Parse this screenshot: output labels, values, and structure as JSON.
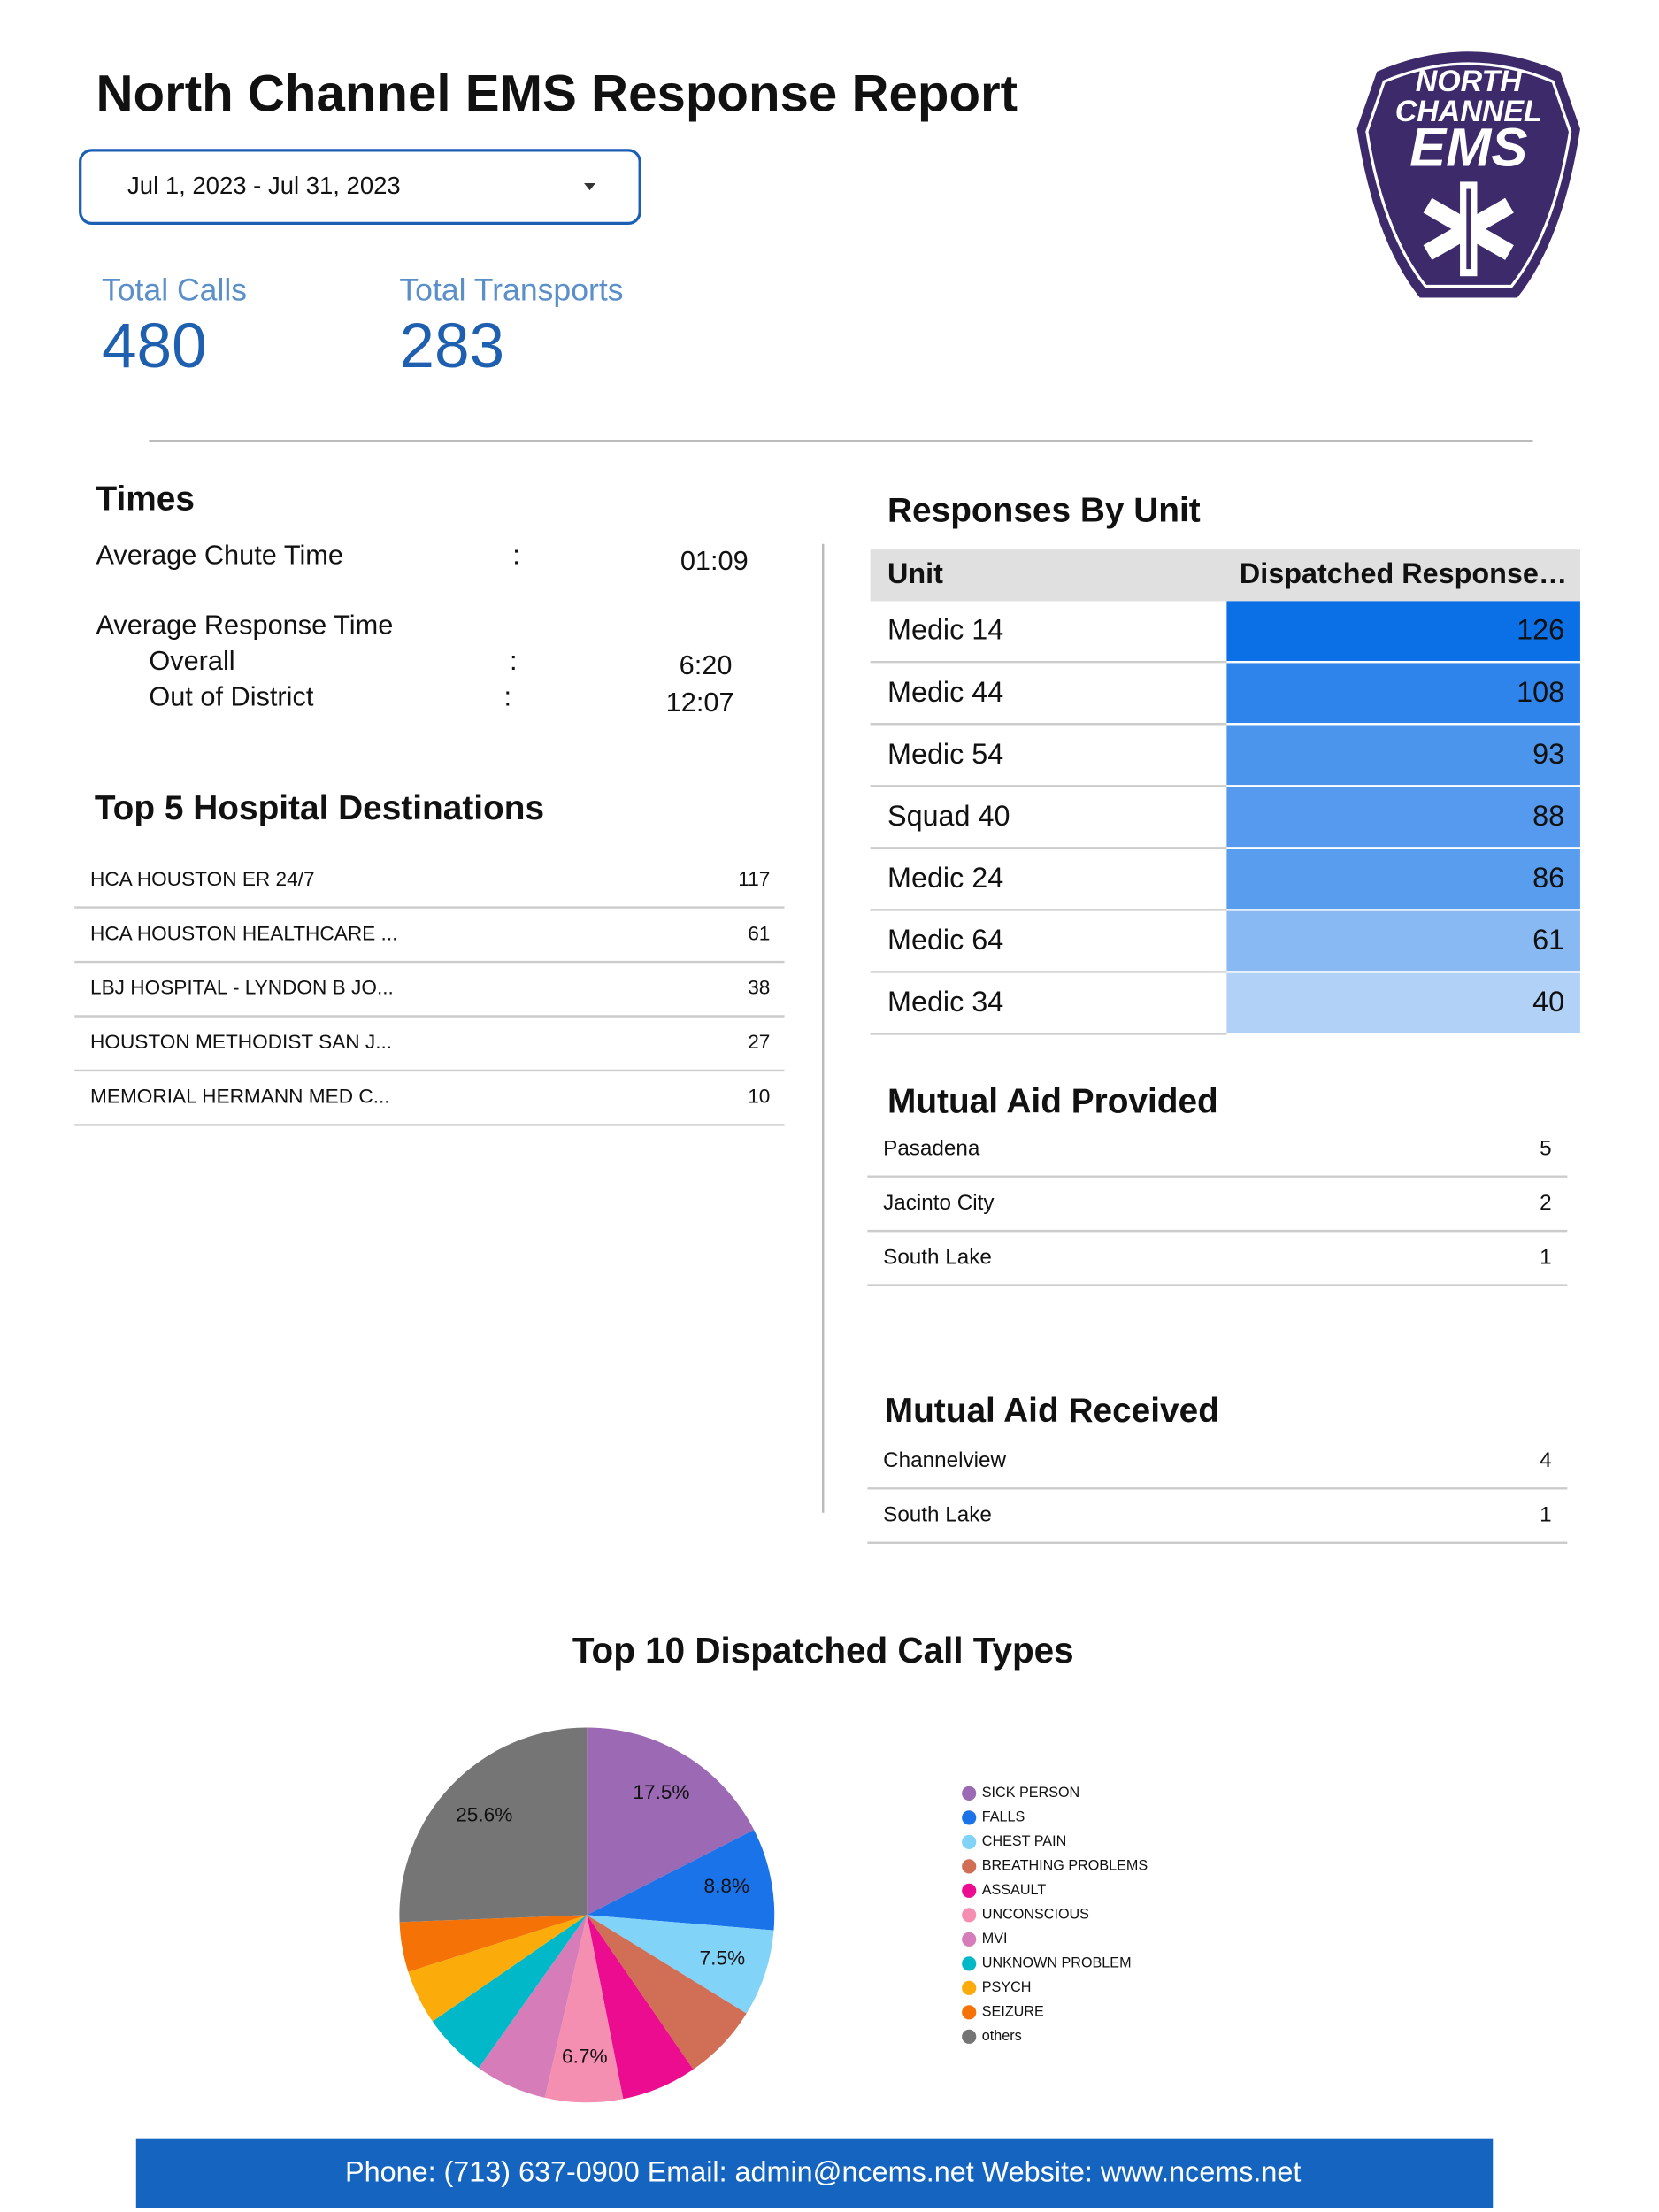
{
  "header": {
    "title": "North Channel EMS Response Report",
    "date_range": "Jul 1, 2023 - Jul 31, 2023"
  },
  "logo": {
    "lines": [
      "NORTH",
      "CHANNEL",
      "EMS"
    ]
  },
  "kpis": [
    {
      "label": "Total Calls",
      "value": 480
    },
    {
      "label": "Total Transports",
      "value": 283
    }
  ],
  "times": {
    "title": "Times",
    "rows": [
      {
        "label": "Average Chute Time",
        "sep": ":",
        "value": "01:09"
      },
      {
        "label": "Average Response Time"
      },
      {
        "label": "Overall",
        "sep": ":",
        "value": "6:20"
      },
      {
        "label": "Out of District",
        "sep": ":",
        "value": "12:07"
      }
    ]
  },
  "hospitals": {
    "title": "Top 5 Hospital Destinations",
    "rows": [
      [
        "HCA HOUSTON ER 24/7",
        117
      ],
      [
        "HCA HOUSTON HEALTHCARE ...",
        61
      ],
      [
        "LBJ HOSPITAL - LYNDON B JO...",
        38
      ],
      [
        "HOUSTON METHODIST SAN J...",
        27
      ],
      [
        "MEMORIAL HERMANN MED C...",
        10
      ]
    ]
  },
  "units": {
    "title": "Responses By Unit",
    "columns": [
      "Unit",
      "Dispatched Response…"
    ],
    "color": "#0b6fe6",
    "rows": [
      [
        "Medic 14",
        126
      ],
      [
        "Medic 44",
        108
      ],
      [
        "Medic 54",
        93
      ],
      [
        "Squad 40",
        88
      ],
      [
        "Medic 24",
        86
      ],
      [
        "Medic 64",
        61
      ],
      [
        "Medic 34",
        40
      ]
    ]
  },
  "aid_provided": {
    "title": "Mutual Aid Provided",
    "rows": [
      [
        "Pasadena",
        5
      ],
      [
        "Jacinto City",
        2
      ],
      [
        "South Lake",
        1
      ]
    ]
  },
  "aid_received": {
    "title": "Mutual Aid Received",
    "rows": [
      [
        "Channelview",
        4
      ],
      [
        "South Lake",
        1
      ]
    ]
  },
  "chart_data": {
    "type": "pie",
    "title": "Top 10 Dispatched Call Types",
    "categories": [
      "SICK PERSON",
      "FALLS",
      "CHEST PAIN",
      "BREATHING PROBLEMS",
      "ASSAULT",
      "UNCONSCIOUS",
      "MVI",
      "UNKNOWN PROBLEM",
      "PSYCH",
      "SEIZURE",
      "others"
    ],
    "values": [
      17.5,
      8.8,
      7.5,
      6.6,
      6.5,
      6.7,
      6.2,
      5.6,
      4.7,
      4.3,
      25.6
    ],
    "value_labels": [
      "17.5%",
      "8.8%",
      "7.5%",
      null,
      null,
      "6.7%",
      null,
      null,
      null,
      null,
      "25.6%"
    ],
    "colors": [
      "#9c6ab4",
      "#1a73e8",
      "#81d3f8",
      "#d06e56",
      "#ec0c8f",
      "#f48fb1",
      "#d67cb8",
      "#00b8c8",
      "#fbac0b",
      "#f57206",
      "#757575"
    ],
    "legend": "right"
  },
  "footer": "Phone: (713) 637-0900 Email: admin@ncems.net Website: www.ncems.net"
}
